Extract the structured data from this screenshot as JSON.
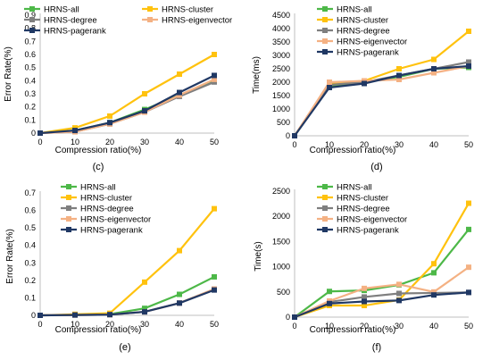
{
  "series_colors": {
    "HRNS-all": "#4db848",
    "HRNS-cluster": "#ffc20e",
    "HRNS-degree": "#7f7f7f",
    "HRNS-eigenvector": "#f4b183",
    "HRNS-pagerank": "#203864"
  },
  "chart_data": [
    {
      "panel": "(c)",
      "type": "line",
      "xlabel": "Compression ratio(%)",
      "ylabel": "Error Rate(%)",
      "ylim": [
        0,
        0.9
      ],
      "yticks": [
        "0",
        "0.1",
        "0.2",
        "0.3",
        "0.4",
        "0.5",
        "0.6",
        "0.7",
        "0.8",
        "0.9"
      ],
      "x": [
        0,
        10,
        20,
        30,
        40,
        50
      ],
      "legend_columns": 2,
      "series": [
        {
          "name": "HRNS-all",
          "values": [
            0,
            0.02,
            0.08,
            0.18,
            0.29,
            0.4
          ]
        },
        {
          "name": "HRNS-cluster",
          "values": [
            0,
            0.04,
            0.13,
            0.3,
            0.45,
            0.6
          ]
        },
        {
          "name": "HRNS-degree",
          "values": [
            0,
            0.01,
            0.07,
            0.16,
            0.28,
            0.39
          ]
        },
        {
          "name": "HRNS-eigenvector",
          "values": [
            0,
            0.01,
            0.07,
            0.16,
            0.29,
            0.41
          ]
        },
        {
          "name": "HRNS-pagerank",
          "values": [
            0,
            0.02,
            0.08,
            0.17,
            0.31,
            0.44
          ]
        }
      ]
    },
    {
      "panel": "(d)",
      "type": "line",
      "xlabel": "Compression ratio(%)",
      "ylabel": "Time(ms)",
      "ylim": [
        0,
        4500
      ],
      "yticks": [
        "0",
        "500",
        "1000",
        "1500",
        "2000",
        "2500",
        "3000",
        "3500",
        "4000",
        "4500"
      ],
      "x": [
        0,
        10,
        20,
        30,
        40,
        50
      ],
      "legend_columns": 1,
      "series": [
        {
          "name": "HRNS-all",
          "values": [
            0,
            1850,
            2000,
            2200,
            2500,
            2550
          ]
        },
        {
          "name": "HRNS-cluster",
          "values": [
            0,
            1950,
            2050,
            2500,
            2850,
            3900
          ]
        },
        {
          "name": "HRNS-degree",
          "values": [
            0,
            1900,
            2000,
            2250,
            2500,
            2750
          ]
        },
        {
          "name": "HRNS-eigenvector",
          "values": [
            0,
            2000,
            2050,
            2100,
            2350,
            2600
          ]
        },
        {
          "name": "HRNS-pagerank",
          "values": [
            0,
            1800,
            1950,
            2250,
            2500,
            2600
          ]
        }
      ]
    },
    {
      "panel": "(e)",
      "type": "line",
      "xlabel": "Compression ratio(%)",
      "ylabel": "Error Rate(%)",
      "ylim": [
        0,
        0.7
      ],
      "yticks": [
        "0",
        "0.1",
        "0.2",
        "0.3",
        "0.4",
        "0.5",
        "0.6",
        "0.7"
      ],
      "x": [
        0,
        10,
        20,
        30,
        40,
        50
      ],
      "legend_columns": 1,
      "series": [
        {
          "name": "HRNS-all",
          "values": [
            0,
            0.003,
            0.007,
            0.04,
            0.12,
            0.22
          ]
        },
        {
          "name": "HRNS-cluster",
          "values": [
            0,
            0.006,
            0.012,
            0.19,
            0.37,
            0.61
          ]
        },
        {
          "name": "HRNS-degree",
          "values": [
            0,
            0.002,
            0.004,
            0.02,
            0.07,
            0.15
          ]
        },
        {
          "name": "HRNS-eigenvector",
          "values": [
            0,
            0.002,
            0.004,
            0.02,
            0.07,
            0.15
          ]
        },
        {
          "name": "HRNS-pagerank",
          "values": [
            0,
            0.002,
            0.004,
            0.02,
            0.07,
            0.145
          ]
        }
      ]
    },
    {
      "panel": "(f)",
      "type": "line",
      "xlabel": "Compression ratio(%)",
      "ylabel": "Time(s)",
      "ylim": [
        0,
        2500
      ],
      "yticks": [
        "0",
        "500",
        "1000",
        "1500",
        "2000",
        "2500"
      ],
      "x": [
        0,
        10,
        20,
        30,
        40,
        50
      ],
      "legend_columns": 1,
      "series": [
        {
          "name": "HRNS-all",
          "values": [
            0,
            510,
            530,
            640,
            880,
            1740
          ]
        },
        {
          "name": "HRNS-cluster",
          "values": [
            0,
            230,
            230,
            340,
            1060,
            2260
          ]
        },
        {
          "name": "HRNS-degree",
          "values": [
            0,
            300,
            400,
            470,
            480,
            490
          ]
        },
        {
          "name": "HRNS-eigenvector",
          "values": [
            0,
            320,
            570,
            650,
            500,
            990
          ]
        },
        {
          "name": "HRNS-pagerank",
          "values": [
            0,
            270,
            310,
            330,
            440,
            490
          ]
        }
      ]
    }
  ]
}
